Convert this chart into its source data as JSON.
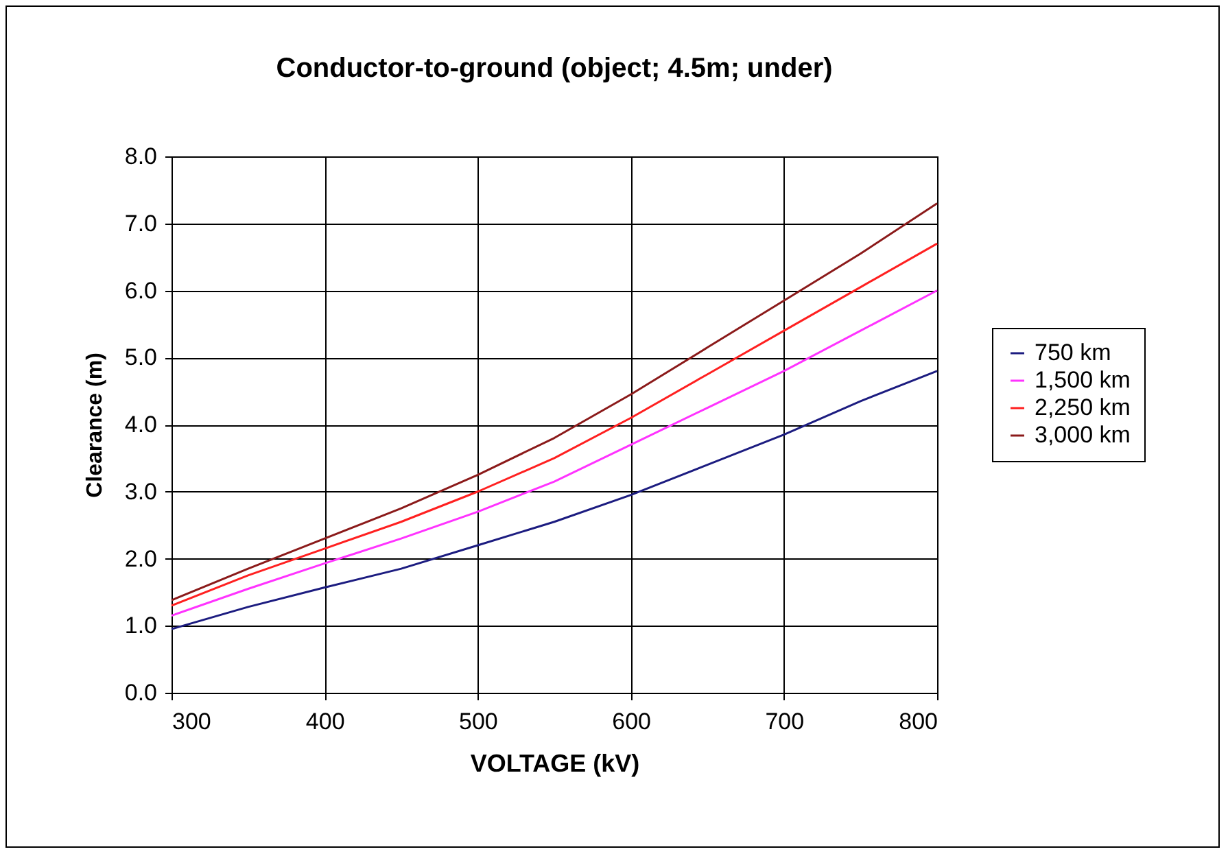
{
  "chart_data": {
    "type": "line",
    "title": "Conductor-to-ground (object; 4.5m; under)",
    "xlabel": "VOLTAGE (kV)",
    "ylabel": "Clearance (m)",
    "x": [
      300,
      350,
      400,
      450,
      500,
      550,
      600,
      650,
      700,
      750,
      800
    ],
    "series": [
      {
        "name": "750 km",
        "color": "#1c1c80",
        "values": [
          0.95,
          1.28,
          1.57,
          1.85,
          2.2,
          2.55,
          2.95,
          3.4,
          3.85,
          4.35,
          4.8
        ]
      },
      {
        "name": "1,500 km",
        "color": "#ff33ff",
        "values": [
          1.15,
          1.55,
          1.93,
          2.3,
          2.7,
          3.15,
          3.7,
          4.25,
          4.8,
          5.4,
          6.0
        ]
      },
      {
        "name": "2,250 km",
        "color": "#ff2020",
        "values": [
          1.3,
          1.75,
          2.15,
          2.55,
          3.0,
          3.5,
          4.1,
          4.75,
          5.4,
          6.05,
          6.7
        ]
      },
      {
        "name": "3,000 km",
        "color": "#8b1a1a",
        "values": [
          1.38,
          1.85,
          2.3,
          2.75,
          3.25,
          3.8,
          4.45,
          5.15,
          5.85,
          6.55,
          7.3
        ]
      }
    ],
    "xlim": [
      300,
      800
    ],
    "xticks": [
      300,
      400,
      500,
      600,
      700,
      800
    ],
    "ylim": [
      0,
      8
    ],
    "yticks": [
      {
        "value": 0,
        "label": "0.0"
      },
      {
        "value": 1,
        "label": "1.0"
      },
      {
        "value": 2,
        "label": "2.0"
      },
      {
        "value": 3,
        "label": "3.0"
      },
      {
        "value": 4,
        "label": "4.0"
      },
      {
        "value": 5,
        "label": "5.0"
      },
      {
        "value": 6,
        "label": "6.0"
      },
      {
        "value": 7,
        "label": "7.0"
      },
      {
        "value": 8,
        "label": "8.0"
      }
    ],
    "grid": true,
    "legend": "right",
    "marker": "none",
    "line_style": "solid"
  }
}
